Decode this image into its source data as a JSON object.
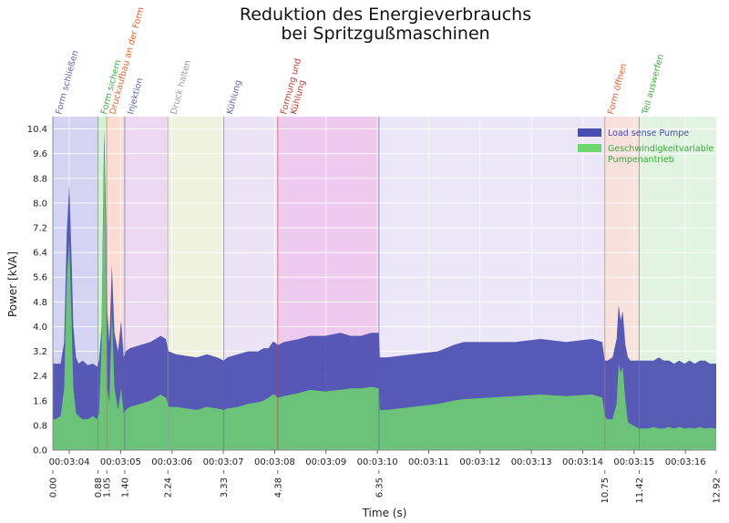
{
  "chart_data": {
    "type": "area",
    "title_lines": [
      "Reduktion des Energieverbrauchs",
      "bei Spritzgußmaschinen"
    ],
    "ylabel": "Power [kVA]",
    "xlabel": "Time (s)",
    "xlim": [
      0,
      12.92
    ],
    "ylim": [
      0,
      10.8
    ],
    "yticks": [
      0.0,
      0.8,
      1.6,
      2.4,
      3.2,
      4.0,
      4.8,
      5.6,
      6.4,
      7.2,
      8.0,
      8.8,
      9.6,
      10.4
    ],
    "ytick_labels": [
      "0.0",
      "0.8",
      "1.6",
      "2.4",
      "3.2",
      "4.0",
      "4.8",
      "5.6",
      "6.4",
      "7.2",
      "8.0",
      "8.8",
      "9.6",
      "10.4"
    ],
    "time_ticks": [
      {
        "x": 0.32,
        "label": "00:03:04"
      },
      {
        "x": 1.32,
        "label": "00:03:05"
      },
      {
        "x": 2.32,
        "label": "00:03:06"
      },
      {
        "x": 3.32,
        "label": "00:03:07"
      },
      {
        "x": 4.32,
        "label": "00:03:08"
      },
      {
        "x": 5.32,
        "label": "00:03:09"
      },
      {
        "x": 6.32,
        "label": "00:03:10"
      },
      {
        "x": 7.32,
        "label": "00:03:11"
      },
      {
        "x": 8.32,
        "label": "00:03:12"
      },
      {
        "x": 9.32,
        "label": "00:03:13"
      },
      {
        "x": 10.32,
        "label": "00:03:14"
      },
      {
        "x": 11.32,
        "label": "00:03:15"
      },
      {
        "x": 12.32,
        "label": "00:03:16"
      }
    ],
    "boundary_ticks": [
      {
        "x": 0.0,
        "label": "0.00"
      },
      {
        "x": 0.88,
        "label": "0.88"
      },
      {
        "x": 1.05,
        "label": "1.05"
      },
      {
        "x": 1.4,
        "label": "1.40"
      },
      {
        "x": 2.24,
        "label": "2.24"
      },
      {
        "x": 3.33,
        "label": "3.33"
      },
      {
        "x": 4.38,
        "label": "4.38"
      },
      {
        "x": 6.35,
        "label": "6.35"
      },
      {
        "x": 10.75,
        "label": "10.75"
      },
      {
        "x": 11.42,
        "label": "11.42"
      },
      {
        "x": 12.92,
        "label": "12.92"
      }
    ],
    "phases": [
      {
        "start": 0.0,
        "end": 0.88,
        "label": "Form schließen",
        "color": "#5a5fb0",
        "fill": "#d4d4f2"
      },
      {
        "start": 0.88,
        "end": 1.05,
        "label": "Form sichern",
        "color": "#3aa83a",
        "fill": "#d3f0d3"
      },
      {
        "start": 1.05,
        "end": 1.4,
        "label": "Druckaufbau an der Form",
        "color": "#e8602a",
        "fill": "#fbdcd3"
      },
      {
        "start": 1.4,
        "end": 2.24,
        "label": "Injektion",
        "color": "#5a5fb0",
        "fill": "#ecd9f1"
      },
      {
        "start": 2.24,
        "end": 3.33,
        "label": "Druck halten",
        "color": "#999999",
        "fill": "#eef2df"
      },
      {
        "start": 3.33,
        "end": 4.38,
        "label": "Kühlung",
        "color": "#5a5fb0",
        "fill": "#ebe4f6"
      },
      {
        "start": 4.38,
        "end": 6.35,
        "label": "Formung und\nKühlung",
        "color": "#c0392b",
        "fill": "#eecbee"
      },
      {
        "start": 6.35,
        "end": 10.75,
        "label": "",
        "color": "#5a5fb0",
        "fill": "#ebe7f7"
      },
      {
        "start": 10.75,
        "end": 11.42,
        "label": "Form öffnen",
        "color": "#e8602a",
        "fill": "#f7e1dc"
      },
      {
        "start": 11.42,
        "end": 12.92,
        "label": "Teil auswerfen",
        "color": "#3aa83a",
        "fill": "#e1f4e1"
      }
    ],
    "series": [
      {
        "name": "Load sense Pumpe",
        "color": "#4a4db0",
        "x": [
          0.0,
          0.05,
          0.15,
          0.22,
          0.27,
          0.32,
          0.36,
          0.4,
          0.45,
          0.5,
          0.58,
          0.68,
          0.78,
          0.86,
          0.9,
          0.95,
          1.0,
          1.03,
          1.06,
          1.1,
          1.15,
          1.2,
          1.27,
          1.33,
          1.38,
          1.42,
          1.5,
          1.7,
          1.9,
          2.1,
          2.2,
          2.24,
          2.26,
          2.4,
          2.8,
          3.0,
          3.2,
          3.33,
          3.4,
          3.6,
          3.8,
          4.0,
          4.1,
          4.2,
          4.28,
          4.32,
          4.38,
          4.5,
          4.8,
          5.0,
          5.3,
          5.6,
          5.8,
          6.0,
          6.2,
          6.35,
          6.37,
          6.5,
          7.0,
          7.5,
          7.8,
          8.0,
          8.5,
          9.0,
          9.5,
          10.0,
          10.5,
          10.7,
          10.75,
          10.8,
          10.9,
          10.98,
          11.02,
          11.06,
          11.1,
          11.15,
          11.2,
          11.25,
          11.3,
          11.42,
          11.6,
          11.7,
          11.8,
          11.9,
          12.0,
          12.1,
          12.2,
          12.3,
          12.4,
          12.5,
          12.6,
          12.7,
          12.8,
          12.92
        ],
        "values": [
          2.8,
          2.8,
          2.8,
          3.5,
          7.0,
          8.6,
          6.5,
          4.0,
          3.0,
          2.8,
          2.9,
          2.75,
          2.8,
          2.7,
          2.9,
          4.0,
          10.4,
          8.0,
          4.5,
          3.5,
          6.0,
          3.8,
          3.2,
          4.2,
          3.0,
          3.2,
          3.3,
          3.4,
          3.5,
          3.7,
          3.6,
          3.3,
          3.2,
          3.1,
          3.0,
          3.1,
          3.0,
          2.9,
          3.0,
          3.1,
          3.2,
          3.2,
          3.3,
          3.3,
          3.5,
          3.5,
          3.4,
          3.5,
          3.6,
          3.7,
          3.7,
          3.8,
          3.7,
          3.7,
          3.8,
          3.8,
          3.0,
          3.0,
          3.1,
          3.2,
          3.4,
          3.5,
          3.5,
          3.5,
          3.6,
          3.5,
          3.6,
          3.5,
          2.9,
          2.9,
          3.0,
          3.6,
          4.7,
          4.2,
          4.5,
          3.4,
          3.0,
          2.9,
          2.9,
          2.9,
          2.9,
          2.9,
          3.0,
          2.9,
          2.9,
          2.8,
          2.9,
          2.8,
          2.9,
          2.8,
          2.9,
          2.9,
          2.8,
          2.8
        ]
      },
      {
        "name": "Geschwindigkeitvariable Pumpenantrieb",
        "color": "#6ed66e",
        "x": [
          0.0,
          0.05,
          0.15,
          0.22,
          0.27,
          0.32,
          0.36,
          0.4,
          0.45,
          0.5,
          0.58,
          0.68,
          0.78,
          0.86,
          0.9,
          0.95,
          1.0,
          1.03,
          1.06,
          1.1,
          1.15,
          1.2,
          1.27,
          1.33,
          1.38,
          1.42,
          1.5,
          1.7,
          1.9,
          2.1,
          2.2,
          2.24,
          2.26,
          2.4,
          2.8,
          3.0,
          3.2,
          3.33,
          3.4,
          3.6,
          3.8,
          4.0,
          4.1,
          4.2,
          4.28,
          4.32,
          4.38,
          4.5,
          4.8,
          5.0,
          5.3,
          5.6,
          5.8,
          6.0,
          6.2,
          6.35,
          6.37,
          6.5,
          7.0,
          7.5,
          7.8,
          8.0,
          8.5,
          9.0,
          9.5,
          10.0,
          10.5,
          10.7,
          10.75,
          10.8,
          10.9,
          10.98,
          11.02,
          11.06,
          11.1,
          11.15,
          11.2,
          11.25,
          11.3,
          11.42,
          11.6,
          11.7,
          11.8,
          11.9,
          12.0,
          12.1,
          12.2,
          12.3,
          12.4,
          12.5,
          12.6,
          12.7,
          12.8,
          12.92
        ],
        "values": [
          1.0,
          1.0,
          1.1,
          2.0,
          5.5,
          6.8,
          4.5,
          2.0,
          1.2,
          1.1,
          1.0,
          1.0,
          1.1,
          1.0,
          1.2,
          3.5,
          9.8,
          7.0,
          2.0,
          1.5,
          4.5,
          2.0,
          1.3,
          2.0,
          1.2,
          1.3,
          1.4,
          1.5,
          1.6,
          1.8,
          1.7,
          1.5,
          1.4,
          1.4,
          1.3,
          1.4,
          1.35,
          1.3,
          1.35,
          1.4,
          1.5,
          1.55,
          1.6,
          1.7,
          1.8,
          1.8,
          1.7,
          1.75,
          1.85,
          1.95,
          1.9,
          1.95,
          2.0,
          2.0,
          2.05,
          2.0,
          1.3,
          1.3,
          1.4,
          1.5,
          1.6,
          1.65,
          1.7,
          1.75,
          1.8,
          1.75,
          1.8,
          1.7,
          1.1,
          1.0,
          1.0,
          1.5,
          2.8,
          2.5,
          2.7,
          1.6,
          0.9,
          0.85,
          0.8,
          0.7,
          0.7,
          0.75,
          0.7,
          0.7,
          0.75,
          0.7,
          0.75,
          0.7,
          0.72,
          0.7,
          0.75,
          0.7,
          0.72,
          0.7
        ]
      }
    ],
    "legend_position": "top-right",
    "grid": true
  }
}
